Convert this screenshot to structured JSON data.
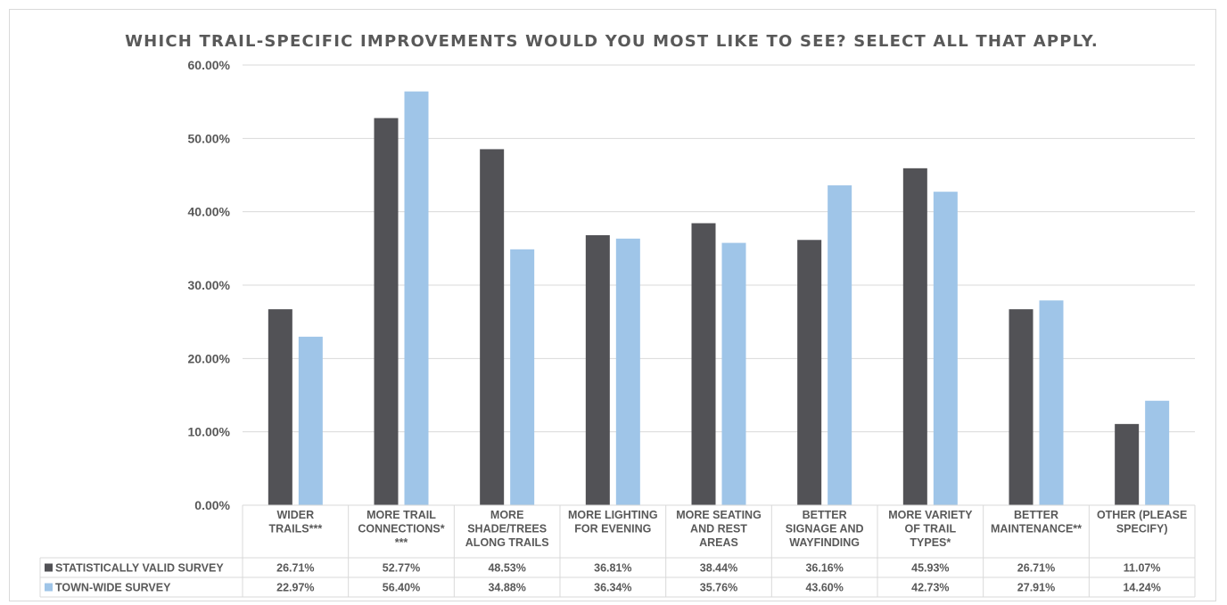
{
  "chart_data": {
    "type": "bar",
    "title": "WHICH TRAIL-SPECIFIC IMPROVEMENTS WOULD YOU MOST LIKE TO SEE? SELECT ALL THAT APPLY.",
    "categories": [
      [
        "WIDER",
        "TRAILS***"
      ],
      [
        "MORE TRAIL",
        "CONNECTIONS*",
        "***"
      ],
      [
        "MORE",
        "SHADE/TREES",
        "ALONG TRAILS"
      ],
      [
        "MORE LIGHTING",
        "FOR EVENING"
      ],
      [
        "MORE SEATING",
        "AND REST",
        "AREAS"
      ],
      [
        "BETTER",
        "SIGNAGE AND",
        "WAYFINDING"
      ],
      [
        "MORE VARIETY",
        "OF TRAIL",
        "TYPES*"
      ],
      [
        "BETTER",
        "MAINTENANCE**"
      ],
      [
        "OTHER (PLEASE",
        "SPECIFY)"
      ]
    ],
    "series": [
      {
        "name": "STATISTICALLY VALID SURVEY",
        "color": "#525256",
        "values": [
          26.71,
          52.77,
          48.53,
          36.81,
          38.44,
          36.16,
          45.93,
          26.71,
          11.07
        ],
        "labels": [
          "26.71%",
          "52.77%",
          "48.53%",
          "36.81%",
          "38.44%",
          "36.16%",
          "45.93%",
          "26.71%",
          "11.07%"
        ]
      },
      {
        "name": "TOWN-WIDE SURVEY",
        "color": "#9fc5e8",
        "values": [
          22.97,
          56.4,
          34.88,
          36.34,
          35.76,
          43.6,
          42.73,
          27.91,
          14.24
        ],
        "labels": [
          "22.97%",
          "56.40%",
          "34.88%",
          "36.34%",
          "35.76%",
          "43.60%",
          "42.73%",
          "27.91%",
          "14.24%"
        ]
      }
    ],
    "yticks": [
      "0.00%",
      "10.00%",
      "20.00%",
      "30.00%",
      "40.00%",
      "50.00%",
      "60.00%"
    ],
    "ylim": [
      0,
      60
    ],
    "grid": true,
    "legend": "data-table",
    "grid_color": "#d9d9d9",
    "text_color": "#595959"
  }
}
